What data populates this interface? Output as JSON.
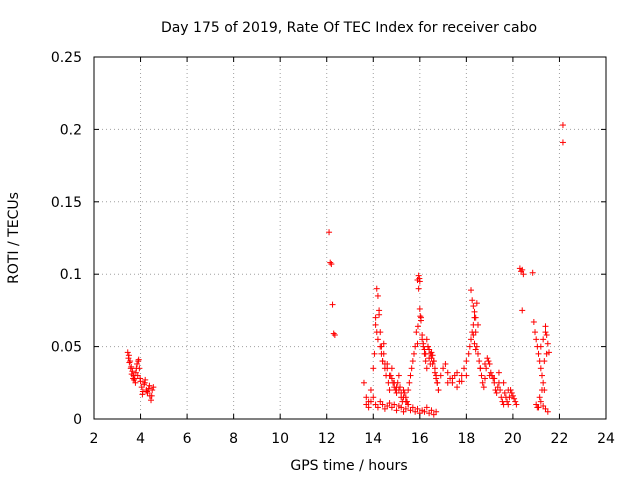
{
  "chart_data": {
    "type": "scatter",
    "title": "Day 175 of 2019, Rate Of TEC Index for receiver cabo",
    "xlabel": "GPS time / hours",
    "ylabel": "ROTI / TECUs",
    "xlim": [
      2,
      24
    ],
    "ylim": [
      0,
      0.25
    ],
    "x_ticks": [
      "2",
      "4",
      "6",
      "8",
      "10",
      "12",
      "14",
      "16",
      "18",
      "20",
      "22",
      "24"
    ],
    "y_ticks": [
      "0",
      "0.05",
      "0.1",
      "0.15",
      "0.2",
      "0.25"
    ],
    "grid": true,
    "marker": "+",
    "color": "#ff0000",
    "series": [
      {
        "name": "ROTI",
        "x": [
          3.45,
          3.5,
          3.55,
          3.6,
          3.65,
          3.7,
          3.75,
          3.8,
          3.85,
          3.9,
          3.95,
          4.0,
          4.05,
          4.1,
          4.15,
          4.2,
          4.25,
          4.3,
          4.35,
          4.4,
          4.45,
          4.5,
          4.55,
          3.48,
          3.58,
          3.68,
          3.78,
          3.88,
          3.98,
          4.08,
          4.18,
          4.28,
          4.38,
          4.48,
          3.52,
          3.62,
          3.72,
          3.82,
          3.92,
          12.1,
          12.15,
          12.2,
          12.25,
          12.3,
          12.35,
          13.6,
          13.7,
          13.8,
          13.9,
          14.0,
          14.05,
          14.1,
          14.15,
          14.2,
          14.25,
          14.3,
          14.35,
          14.4,
          14.45,
          14.5,
          14.55,
          14.6,
          14.65,
          14.7,
          14.75,
          14.8,
          14.85,
          14.9,
          14.95,
          15.0,
          15.05,
          15.1,
          15.15,
          15.2,
          15.25,
          15.3,
          15.35,
          15.4,
          15.45,
          15.5,
          15.55,
          15.6,
          15.65,
          15.7,
          15.75,
          15.8,
          15.85,
          15.9,
          15.95,
          16.0,
          16.05,
          16.1,
          16.15,
          16.2,
          16.25,
          16.3,
          16.35,
          16.4,
          16.45,
          16.5,
          16.55,
          16.6,
          16.65,
          16.7,
          16.75,
          16.8,
          13.7,
          13.8,
          13.9,
          14.0,
          14.1,
          14.2,
          14.3,
          14.4,
          14.5,
          14.6,
          14.7,
          14.8,
          14.9,
          15.0,
          15.1,
          15.2,
          15.3,
          15.4,
          15.5,
          15.6,
          15.7,
          15.8,
          15.9,
          16.0,
          16.1,
          16.2,
          16.3,
          16.4,
          16.5,
          16.6,
          16.7,
          14.1,
          14.15,
          14.2,
          14.25,
          14.3,
          14.35,
          14.4,
          14.45,
          14.5,
          14.6,
          14.7,
          14.8,
          14.9,
          15.0,
          15.1,
          15.2,
          15.3,
          15.4,
          15.5,
          15.9,
          15.92,
          15.95,
          15.98,
          16.0,
          16.02,
          16.05,
          16.1,
          16.15,
          16.2,
          16.25,
          16.3,
          16.35,
          16.4,
          16.45,
          16.5,
          16.55,
          16.6,
          16.65,
          16.7,
          16.75,
          16.8,
          16.9,
          17.0,
          17.1,
          17.2,
          17.3,
          17.4,
          17.5,
          17.6,
          17.7,
          17.8,
          17.9,
          18.0,
          18.1,
          18.15,
          18.2,
          18.25,
          18.3,
          18.35,
          18.4,
          18.45,
          18.5,
          18.55,
          18.6,
          18.65,
          18.7,
          18.75,
          18.8,
          18.85,
          18.9,
          18.95,
          19.0,
          19.05,
          19.1,
          19.15,
          19.2,
          19.25,
          19.3,
          19.35,
          19.4,
          19.45,
          19.5,
          19.55,
          19.6,
          19.65,
          19.7,
          19.75,
          19.8,
          19.85,
          19.9,
          19.95,
          20.0,
          20.05,
          20.1,
          20.15,
          18.2,
          18.25,
          18.3,
          18.35,
          18.4,
          18.45,
          18.5,
          18.3,
          18.35,
          18.4,
          17.2,
          17.4,
          17.6,
          17.8,
          18.0,
          18.6,
          18.8,
          19.0,
          19.2,
          19.4,
          19.6,
          19.8,
          20.3,
          20.35,
          20.4,
          20.45,
          20.4,
          20.85,
          20.9,
          20.95,
          21.0,
          21.05,
          21.1,
          21.15,
          21.2,
          21.25,
          21.3,
          21.35,
          21.4,
          21.45,
          21.5,
          21.55,
          21.0,
          21.1,
          21.2,
          21.3,
          21.4,
          21.5,
          21.05,
          21.15,
          21.25,
          21.35,
          21.45,
          21.2,
          21.3,
          21.4,
          22.15,
          22.15
        ],
        "y": [
          0.046,
          0.044,
          0.04,
          0.036,
          0.033,
          0.03,
          0.028,
          0.032,
          0.038,
          0.04,
          0.035,
          0.026,
          0.022,
          0.019,
          0.024,
          0.027,
          0.02,
          0.018,
          0.021,
          0.016,
          0.013,
          0.02,
          0.022,
          0.042,
          0.035,
          0.028,
          0.025,
          0.03,
          0.028,
          0.017,
          0.025,
          0.019,
          0.023,
          0.016,
          0.039,
          0.031,
          0.027,
          0.035,
          0.041,
          0.129,
          0.108,
          0.107,
          0.079,
          0.059,
          0.058,
          0.025,
          0.015,
          0.012,
          0.02,
          0.035,
          0.045,
          0.07,
          0.09,
          0.085,
          0.075,
          0.06,
          0.05,
          0.04,
          0.045,
          0.035,
          0.03,
          0.038,
          0.025,
          0.02,
          0.03,
          0.035,
          0.025,
          0.022,
          0.02,
          0.018,
          0.025,
          0.03,
          0.022,
          0.015,
          0.012,
          0.02,
          0.018,
          0.015,
          0.012,
          0.02,
          0.025,
          0.03,
          0.035,
          0.04,
          0.045,
          0.05,
          0.06,
          0.096,
          0.099,
          0.076,
          0.07,
          0.055,
          0.05,
          0.045,
          0.04,
          0.035,
          0.05,
          0.048,
          0.045,
          0.042,
          0.038,
          0.04,
          0.035,
          0.03,
          0.025,
          0.02,
          0.01,
          0.008,
          0.012,
          0.015,
          0.01,
          0.008,
          0.012,
          0.01,
          0.007,
          0.009,
          0.011,
          0.008,
          0.01,
          0.006,
          0.009,
          0.008,
          0.005,
          0.007,
          0.01,
          0.006,
          0.008,
          0.005,
          0.007,
          0.004,
          0.006,
          0.005,
          0.008,
          0.004,
          0.006,
          0.003,
          0.005,
          0.065,
          0.06,
          0.055,
          0.072,
          0.05,
          0.045,
          0.04,
          0.052,
          0.038,
          0.035,
          0.03,
          0.028,
          0.025,
          0.022,
          0.02,
          0.018,
          0.015,
          0.012,
          0.01,
          0.052,
          0.064,
          0.09,
          0.097,
          0.095,
          0.071,
          0.068,
          0.058,
          0.052,
          0.048,
          0.045,
          0.055,
          0.05,
          0.042,
          0.038,
          0.046,
          0.044,
          0.04,
          0.032,
          0.028,
          0.025,
          0.02,
          0.03,
          0.035,
          0.038,
          0.032,
          0.028,
          0.025,
          0.03,
          0.022,
          0.026,
          0.03,
          0.035,
          0.04,
          0.045,
          0.05,
          0.055,
          0.06,
          0.065,
          0.07,
          0.06,
          0.05,
          0.045,
          0.04,
          0.035,
          0.03,
          0.025,
          0.022,
          0.028,
          0.035,
          0.042,
          0.04,
          0.038,
          0.032,
          0.03,
          0.028,
          0.025,
          0.02,
          0.018,
          0.022,
          0.025,
          0.02,
          0.015,
          0.012,
          0.01,
          0.018,
          0.015,
          0.012,
          0.01,
          0.015,
          0.02,
          0.018,
          0.016,
          0.014,
          0.012,
          0.01,
          0.089,
          0.082,
          0.078,
          0.074,
          0.07,
          0.08,
          0.065,
          0.058,
          0.052,
          0.048,
          0.025,
          0.028,
          0.032,
          0.026,
          0.03,
          0.035,
          0.038,
          0.03,
          0.028,
          0.032,
          0.025,
          0.02,
          0.104,
          0.102,
          0.103,
          0.1,
          0.075,
          0.101,
          0.067,
          0.06,
          0.055,
          0.05,
          0.045,
          0.04,
          0.035,
          0.03,
          0.025,
          0.02,
          0.064,
          0.058,
          0.052,
          0.046,
          0.01,
          0.008,
          0.012,
          0.009,
          0.007,
          0.005,
          0.008,
          0.015,
          0.02,
          0.04,
          0.045,
          0.05,
          0.055,
          0.06,
          0.203,
          0.191
        ]
      }
    ]
  }
}
